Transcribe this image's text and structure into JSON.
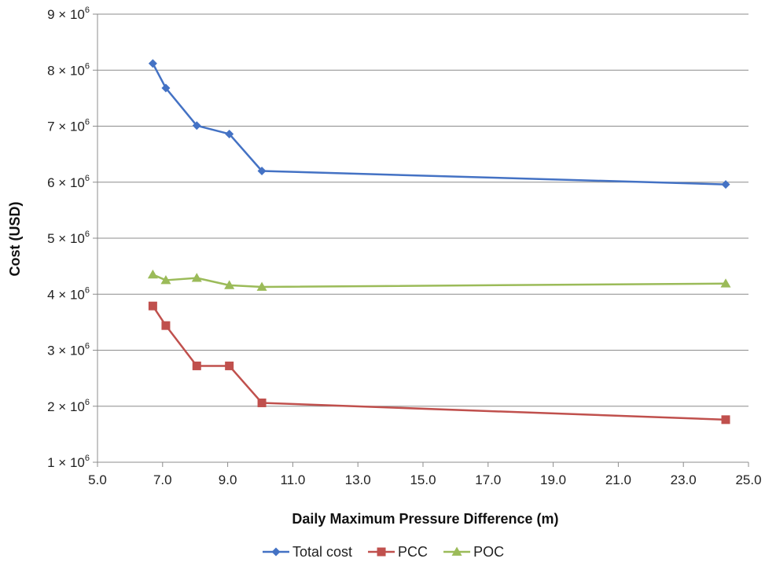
{
  "chart_data": {
    "type": "line",
    "xlabel": "Daily Maximum Pressure Difference (m)",
    "ylabel": "Cost (USD)",
    "xlim": [
      5.0,
      25.0
    ],
    "ylim": [
      1,
      9
    ],
    "y_unit_exponent": "6",
    "y_unit_prefix": "× 10",
    "x_ticks": [
      "5.0",
      "7.0",
      "9.0",
      "11.0",
      "13.0",
      "15.0",
      "17.0",
      "19.0",
      "21.0",
      "23.0",
      "25.0"
    ],
    "y_ticks": [
      "1",
      "2",
      "3",
      "4",
      "5",
      "6",
      "7",
      "8",
      "9"
    ],
    "grid": "horizontal",
    "legend_position": "bottom",
    "series": [
      {
        "name": "Total cost",
        "color": "#4472c4",
        "marker": "diamond",
        "x": [
          6.7,
          7.1,
          8.05,
          9.05,
          10.05,
          24.3
        ],
        "y": [
          8.12,
          7.68,
          7.01,
          6.86,
          6.2,
          5.96
        ]
      },
      {
        "name": "PCC",
        "color": "#c0504d",
        "marker": "square",
        "x": [
          6.7,
          7.1,
          8.05,
          9.05,
          10.05,
          24.3
        ],
        "y": [
          3.79,
          3.44,
          2.72,
          2.72,
          2.06,
          1.76
        ]
      },
      {
        "name": "POC",
        "color": "#9bbb59",
        "marker": "triangle",
        "x": [
          6.7,
          7.1,
          8.05,
          9.05,
          10.05,
          24.3
        ],
        "y": [
          4.35,
          4.25,
          4.29,
          4.16,
          4.13,
          4.19
        ]
      }
    ]
  }
}
